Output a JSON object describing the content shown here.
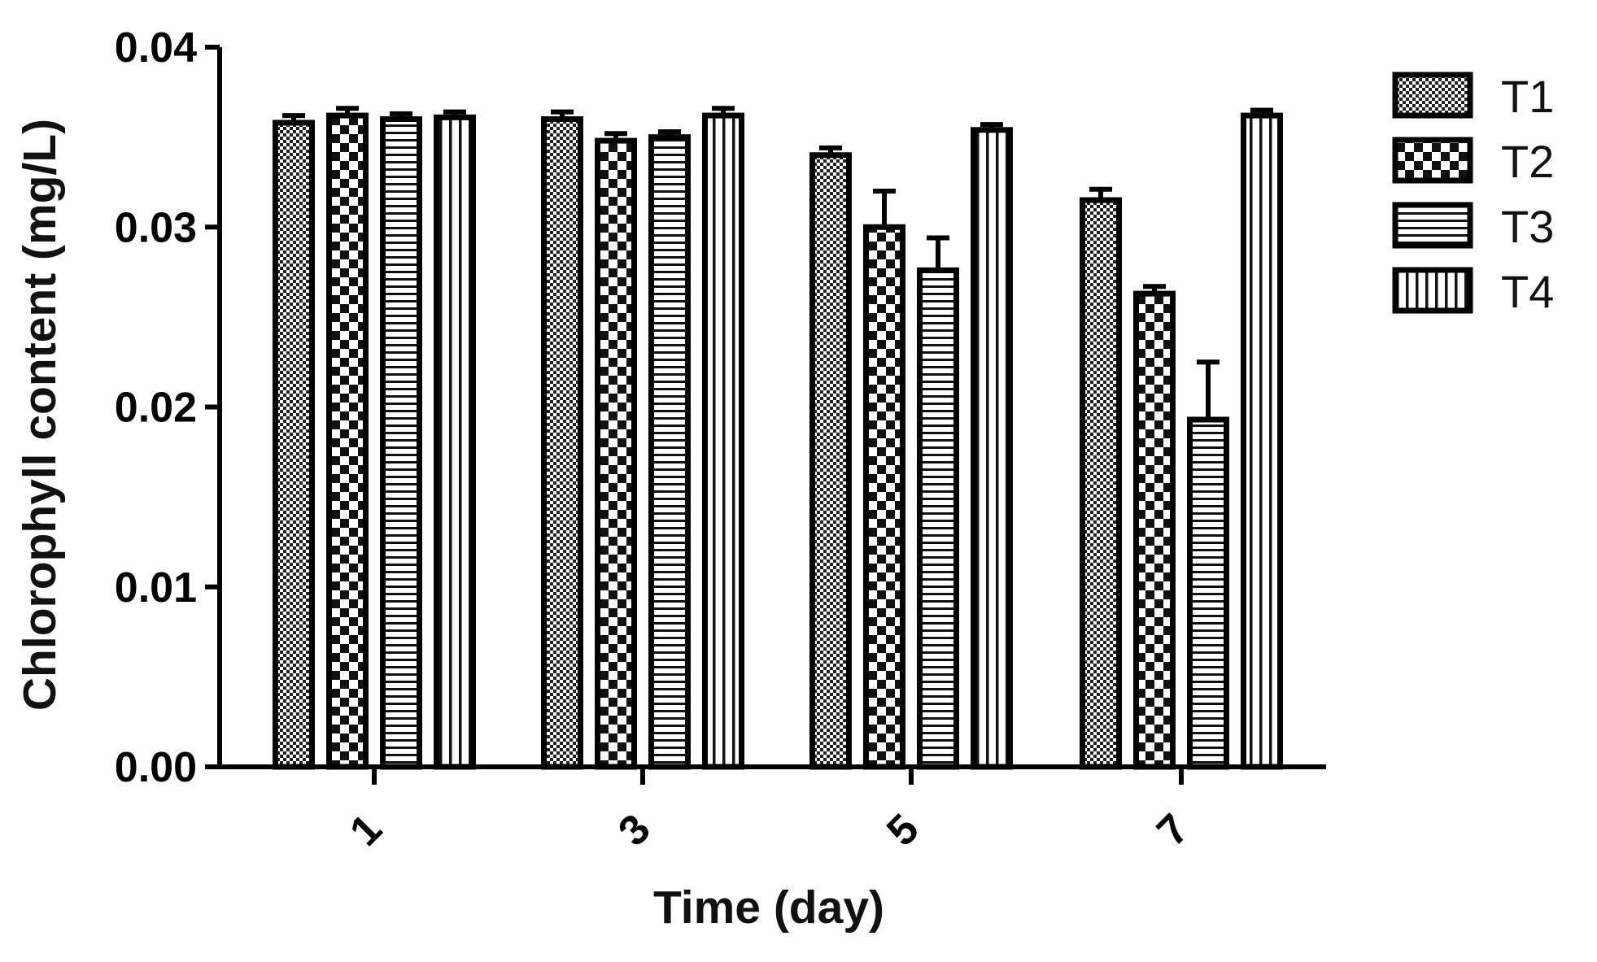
{
  "chart_data": {
    "type": "bar",
    "title": "",
    "xlabel": "Time (day)",
    "ylabel": "Chlorophyll content (mg/L)",
    "categories": [
      "1",
      "3",
      "5",
      "7"
    ],
    "ylim": [
      0,
      0.04
    ],
    "yticks": [
      "0.00",
      "0.01",
      "0.02",
      "0.03",
      "0.04"
    ],
    "grid": false,
    "legend_position": "right",
    "series": [
      {
        "name": "T1",
        "pattern": "checker",
        "values": [
          0.0358,
          0.036,
          0.034,
          0.0315
        ],
        "errors": [
          0.0004,
          0.0004,
          0.0004,
          0.0006
        ]
      },
      {
        "name": "T2",
        "pattern": "big-checker",
        "values": [
          0.0362,
          0.0348,
          0.03,
          0.0263
        ],
        "errors": [
          0.0004,
          0.0004,
          0.002,
          0.0004
        ]
      },
      {
        "name": "T3",
        "pattern": "horizontal-lines",
        "values": [
          0.036,
          0.035,
          0.0276,
          0.0193
        ],
        "errors": [
          0.0003,
          0.0003,
          0.0018,
          0.0032
        ]
      },
      {
        "name": "T4",
        "pattern": "vertical-lines",
        "values": [
          0.0361,
          0.0362,
          0.0354,
          0.0362
        ],
        "errors": [
          0.0003,
          0.0004,
          0.0003,
          0.0003
        ]
      }
    ]
  }
}
